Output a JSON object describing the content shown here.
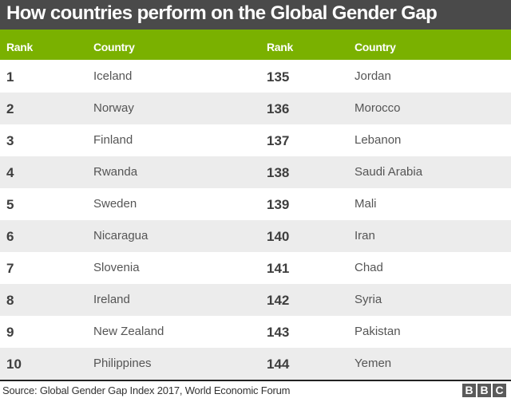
{
  "title": "How countries perform on the Global Gender Gap",
  "header": {
    "rank_left": "Rank",
    "country_left": "Country",
    "rank_right": "Rank",
    "country_right": "Country"
  },
  "rows": [
    {
      "rank_top": "1",
      "country_top": "Iceland",
      "rank_bottom": "135",
      "country_bottom": "Jordan"
    },
    {
      "rank_top": "2",
      "country_top": "Norway",
      "rank_bottom": "136",
      "country_bottom": "Morocco"
    },
    {
      "rank_top": "3",
      "country_top": "Finland",
      "rank_bottom": "137",
      "country_bottom": "Lebanon"
    },
    {
      "rank_top": "4",
      "country_top": "Rwanda",
      "rank_bottom": "138",
      "country_bottom": "Saudi Arabia"
    },
    {
      "rank_top": "5",
      "country_top": "Sweden",
      "rank_bottom": "139",
      "country_bottom": "Mali"
    },
    {
      "rank_top": "6",
      "country_top": "Nicaragua",
      "rank_bottom": "140",
      "country_bottom": "Iran"
    },
    {
      "rank_top": "7",
      "country_top": "Slovenia",
      "rank_bottom": "141",
      "country_bottom": "Chad"
    },
    {
      "rank_top": "8",
      "country_top": "Ireland",
      "rank_bottom": "142",
      "country_bottom": "Syria"
    },
    {
      "rank_top": "9",
      "country_top": "New Zealand",
      "rank_bottom": "143",
      "country_bottom": "Pakistan"
    },
    {
      "rank_top": "10",
      "country_top": "Philippines",
      "rank_bottom": "144",
      "country_bottom": "Yemen"
    }
  ],
  "footer": {
    "source": "Source:  Global Gender Gap Index 2017, World Economic Forum",
    "logo": [
      "B",
      "B",
      "C"
    ]
  },
  "colors": {
    "title_bg": "#4a4a4a",
    "header_bg": "#7ab100",
    "alt_row_bg": "#ececec"
  }
}
